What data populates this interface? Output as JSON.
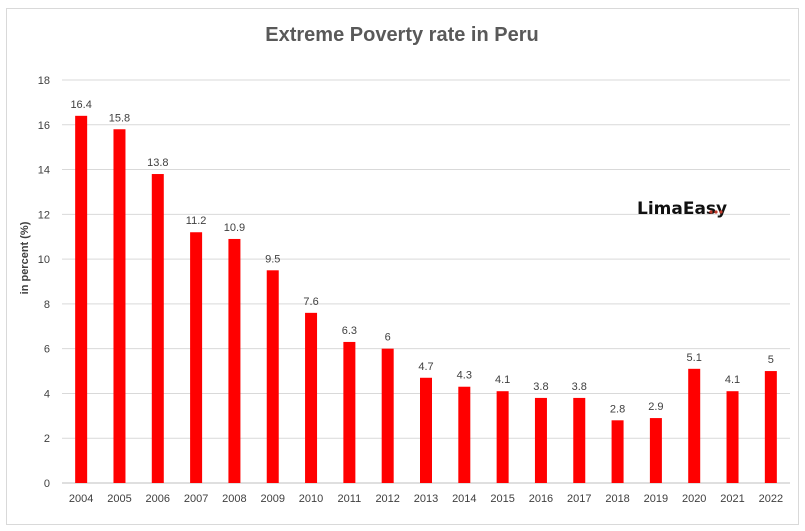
{
  "chart_data": {
    "type": "bar",
    "title": "Extreme Poverty rate in Peru",
    "ylabel": "in percent (%)",
    "xlabel": "",
    "categories": [
      "2004",
      "2005",
      "2006",
      "2007",
      "2008",
      "2009",
      "2010",
      "2011",
      "2012",
      "2013",
      "2014",
      "2015",
      "2016",
      "2017",
      "2018",
      "2019",
      "2020",
      "2021",
      "2022"
    ],
    "values": [
      16.4,
      15.8,
      13.8,
      11.2,
      10.9,
      9.5,
      7.6,
      6.3,
      6,
      4.7,
      4.3,
      4.1,
      3.8,
      3.8,
      2.8,
      2.9,
      5.1,
      4.1,
      5
    ],
    "data_labels": [
      "16.4",
      "15.8",
      "13.8",
      "11.2",
      "10.9",
      "9.5",
      "7.6",
      "6.3",
      "6",
      "4.7",
      "4.3",
      "4.1",
      "3.8",
      "3.8",
      "2.8",
      "2.9",
      "5.1",
      "4.1",
      "5"
    ],
    "yticks": [
      "0",
      "2",
      "4",
      "6",
      "8",
      "10",
      "12",
      "14",
      "16",
      "18"
    ],
    "ylim": [
      0,
      18
    ],
    "grid": true,
    "legend": "none",
    "bar_color": "#ff0000"
  },
  "watermark": {
    "text": "LimaEasy",
    "suffix_dots_color": "#c0392b"
  }
}
